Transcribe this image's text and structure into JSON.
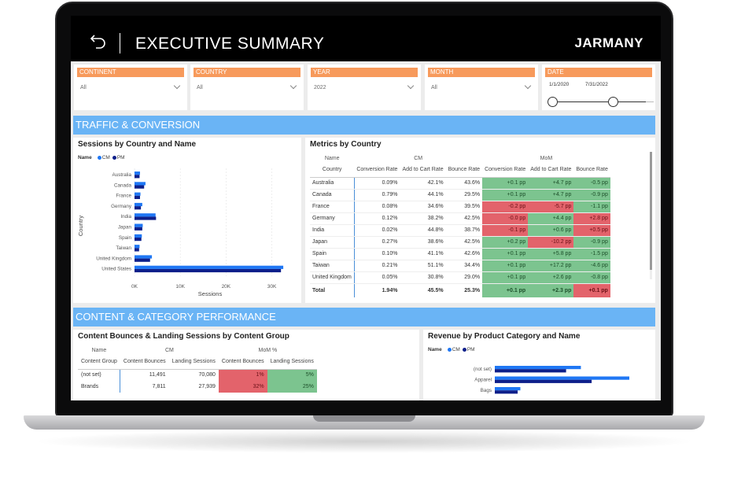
{
  "header": {
    "title": "EXECUTIVE SUMMARY",
    "brand": "JARMANY"
  },
  "filters": {
    "continent": {
      "label": "CONTINENT",
      "value": "All"
    },
    "country": {
      "label": "COUNTRY",
      "value": "All"
    },
    "year": {
      "label": "YEAR",
      "value": "2022"
    },
    "month": {
      "label": "MONTH",
      "value": "All"
    },
    "date": {
      "label": "DATE",
      "start": "1/1/2020",
      "end": "7/31/2022"
    }
  },
  "sections": {
    "traffic": "TRAFFIC & CONVERSION",
    "content": "CONTENT & CATEGORY PERFORMANCE"
  },
  "colors": {
    "cm": "#1f77f4",
    "pm": "#0d1f8a",
    "accent_orange": "#f79a5b",
    "section_blue": "#6ab4f5",
    "good": "#7cc48f",
    "bad": "#e3636b"
  },
  "sessions_panel": {
    "title": "Sessions by Country and Name",
    "legend_name": "Name",
    "legend_cm": "CM",
    "legend_pm": "PM"
  },
  "chart_data": [
    {
      "type": "bar",
      "orientation": "horizontal",
      "title": "Sessions by Country and Name",
      "xlabel": "Sessions",
      "ylabel": "Country",
      "xlim": [
        0,
        33000
      ],
      "xticks": [
        "0K",
        "10K",
        "20K",
        "30K"
      ],
      "categories": [
        "Australia",
        "Canada",
        "France",
        "Germany",
        "India",
        "Japan",
        "Spain",
        "Taiwan",
        "United Kingdom",
        "United States"
      ],
      "series": [
        {
          "name": "CM",
          "values": [
            1200,
            2400,
            1300,
            1700,
            4600,
            1800,
            1600,
            1100,
            3800,
            32500
          ]
        },
        {
          "name": "PM",
          "values": [
            1100,
            2100,
            1200,
            1400,
            4700,
            1700,
            1500,
            1000,
            3400,
            32000
          ]
        }
      ],
      "legend": "top-left",
      "grid": true
    },
    {
      "type": "bar",
      "orientation": "horizontal",
      "title": "Revenue by Product Category and Name",
      "ylabel": "",
      "categories": [
        "(not set)",
        "Apparel",
        "Bags"
      ],
      "series": [
        {
          "name": "CM",
          "values": [
            64,
            100,
            19
          ]
        },
        {
          "name": "PM",
          "values": [
            53,
            72,
            17
          ]
        }
      ],
      "legend": "top-left"
    }
  ],
  "metrics_panel": {
    "title": "Metrics by Country",
    "group_name": "Name",
    "group_cm": "CM",
    "group_mom": "MoM",
    "columns": [
      "Country",
      "Conversion Rate",
      "Add to Cart Rate",
      "Bounce Rate",
      "Conversion Rate",
      "Add to Cart Rate",
      "Bounce Rate"
    ],
    "rows": [
      {
        "country": "Australia",
        "cr": "0.09%",
        "acr": "42.1%",
        "br": "43.6%",
        "mcr": "+0.1 pp",
        "macr": "+4.7 pp",
        "mbr": "-0.5 pp",
        "s": [
          "good",
          "good",
          "good"
        ]
      },
      {
        "country": "Canada",
        "cr": "0.79%",
        "acr": "44.1%",
        "br": "29.5%",
        "mcr": "+0.1 pp",
        "macr": "+4.7 pp",
        "mbr": "-0.9 pp",
        "s": [
          "good",
          "good",
          "good"
        ]
      },
      {
        "country": "France",
        "cr": "0.08%",
        "acr": "34.6%",
        "br": "39.5%",
        "mcr": "-0.2 pp",
        "macr": "-5.7 pp",
        "mbr": "-1.1 pp",
        "s": [
          "bad",
          "bad",
          "good"
        ]
      },
      {
        "country": "Germany",
        "cr": "0.12%",
        "acr": "38.2%",
        "br": "42.5%",
        "mcr": "-0.0 pp",
        "macr": "+4.4 pp",
        "mbr": "+2.8 pp",
        "s": [
          "bad",
          "good",
          "bad"
        ]
      },
      {
        "country": "India",
        "cr": "0.02%",
        "acr": "44.8%",
        "br": "38.7%",
        "mcr": "-0.1 pp",
        "macr": "+0.6 pp",
        "mbr": "+0.5 pp",
        "s": [
          "bad",
          "good",
          "bad"
        ]
      },
      {
        "country": "Japan",
        "cr": "0.27%",
        "acr": "38.6%",
        "br": "42.5%",
        "mcr": "+0.2 pp",
        "macr": "-10.2 pp",
        "mbr": "-0.9 pp",
        "s": [
          "good",
          "bad",
          "good"
        ]
      },
      {
        "country": "Spain",
        "cr": "0.10%",
        "acr": "41.1%",
        "br": "42.6%",
        "mcr": "+0.1 pp",
        "macr": "+5.8 pp",
        "mbr": "-1.5 pp",
        "s": [
          "good",
          "good",
          "good"
        ]
      },
      {
        "country": "Taiwan",
        "cr": "0.21%",
        "acr": "51.1%",
        "br": "34.4%",
        "mcr": "+0.1 pp",
        "macr": "+17.2 pp",
        "mbr": "-4.6 pp",
        "s": [
          "good",
          "good",
          "good"
        ]
      },
      {
        "country": "United Kingdom",
        "cr": "0.05%",
        "acr": "30.8%",
        "br": "29.0%",
        "mcr": "+0.1 pp",
        "macr": "+2.6 pp",
        "mbr": "-0.8 pp",
        "s": [
          "good",
          "good",
          "good"
        ]
      }
    ],
    "total": {
      "country": "Total",
      "cr": "1.94%",
      "acr": "45.5%",
      "br": "25.3%",
      "mcr": "+0.1 pp",
      "macr": "+2.3 pp",
      "mbr": "+0.1 pp",
      "s": [
        "good",
        "good",
        "bad"
      ]
    }
  },
  "content_panel": {
    "title": "Content Bounces & Landing Sessions by Content Group",
    "group_name": "Name",
    "group_cm": "CM",
    "group_mom": "MoM %",
    "columns": [
      "Content Group",
      "Content Bounces",
      "Landing Sessions",
      "Content Bounces",
      "Landing Sessions"
    ],
    "rows": [
      {
        "group": "(not set)",
        "cb": "11,491",
        "ls": "70,080",
        "mcb": "1%",
        "mls": "5%",
        "s": [
          "bad",
          "good"
        ]
      },
      {
        "group": "Brands",
        "cb": "7,811",
        "ls": "27,939",
        "mcb": "32%",
        "mls": "25%",
        "s": [
          "bad",
          "good"
        ]
      }
    ]
  },
  "revenue_panel": {
    "title": "Revenue by Product Category and Name",
    "legend_name": "Name",
    "legend_cm": "CM",
    "legend_pm": "PM"
  }
}
